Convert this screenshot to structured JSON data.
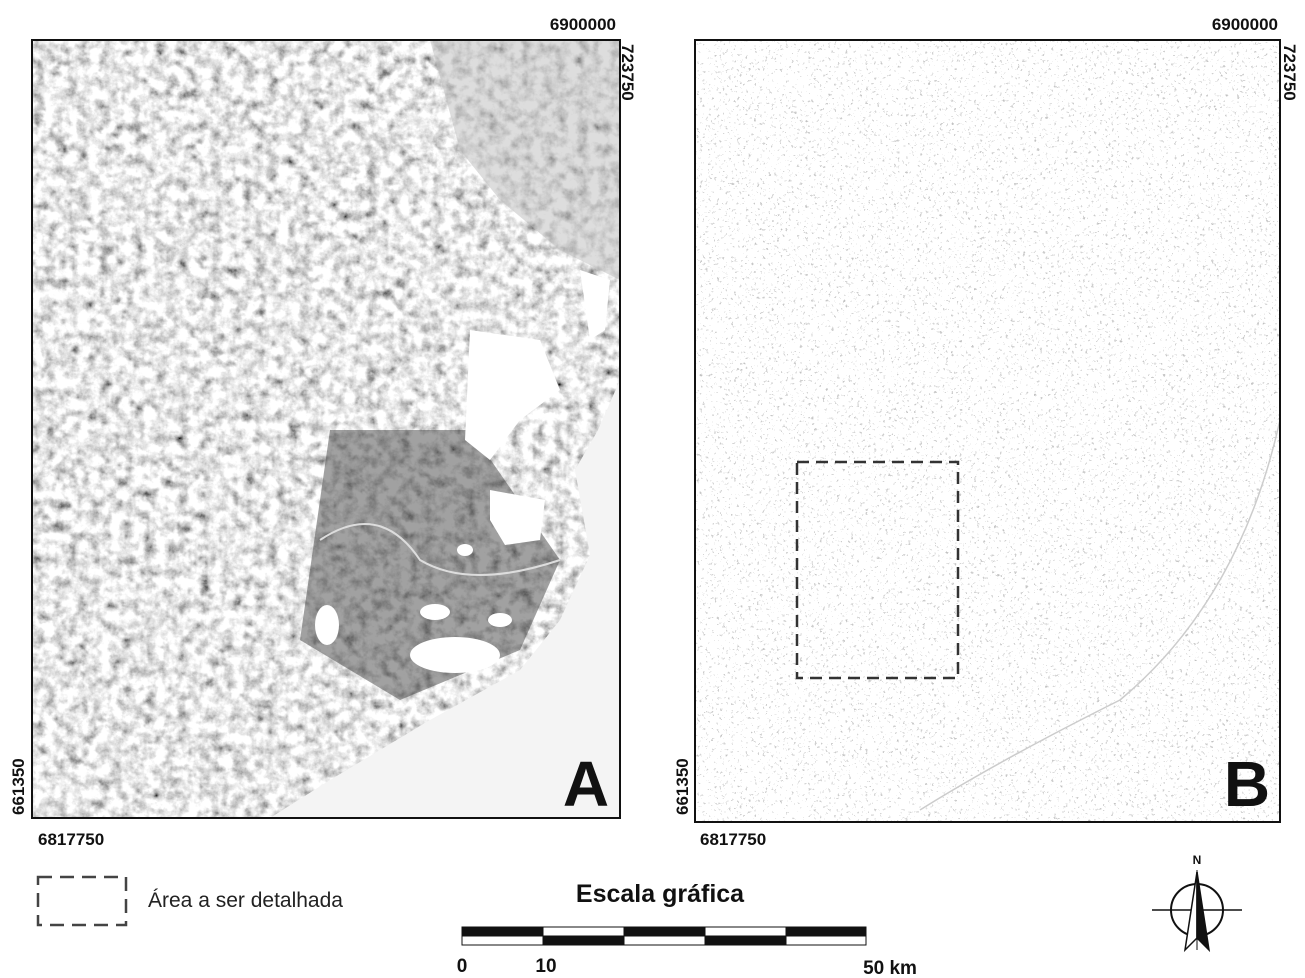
{
  "panels": [
    {
      "letter": "A",
      "top_label": "6900000",
      "right_label": "723750",
      "left_label": "661350",
      "bottom_label": "6817750"
    },
    {
      "letter": "B",
      "top_label": "6900000",
      "right_label": "723750",
      "left_label": "661350",
      "bottom_label": "6817750"
    }
  ],
  "legend": {
    "label": "Área a ser detalhada"
  },
  "scale": {
    "title": "Escala gráfica",
    "labels": [
      "0",
      "10",
      "50 km"
    ]
  },
  "compass": {
    "label": "N"
  }
}
